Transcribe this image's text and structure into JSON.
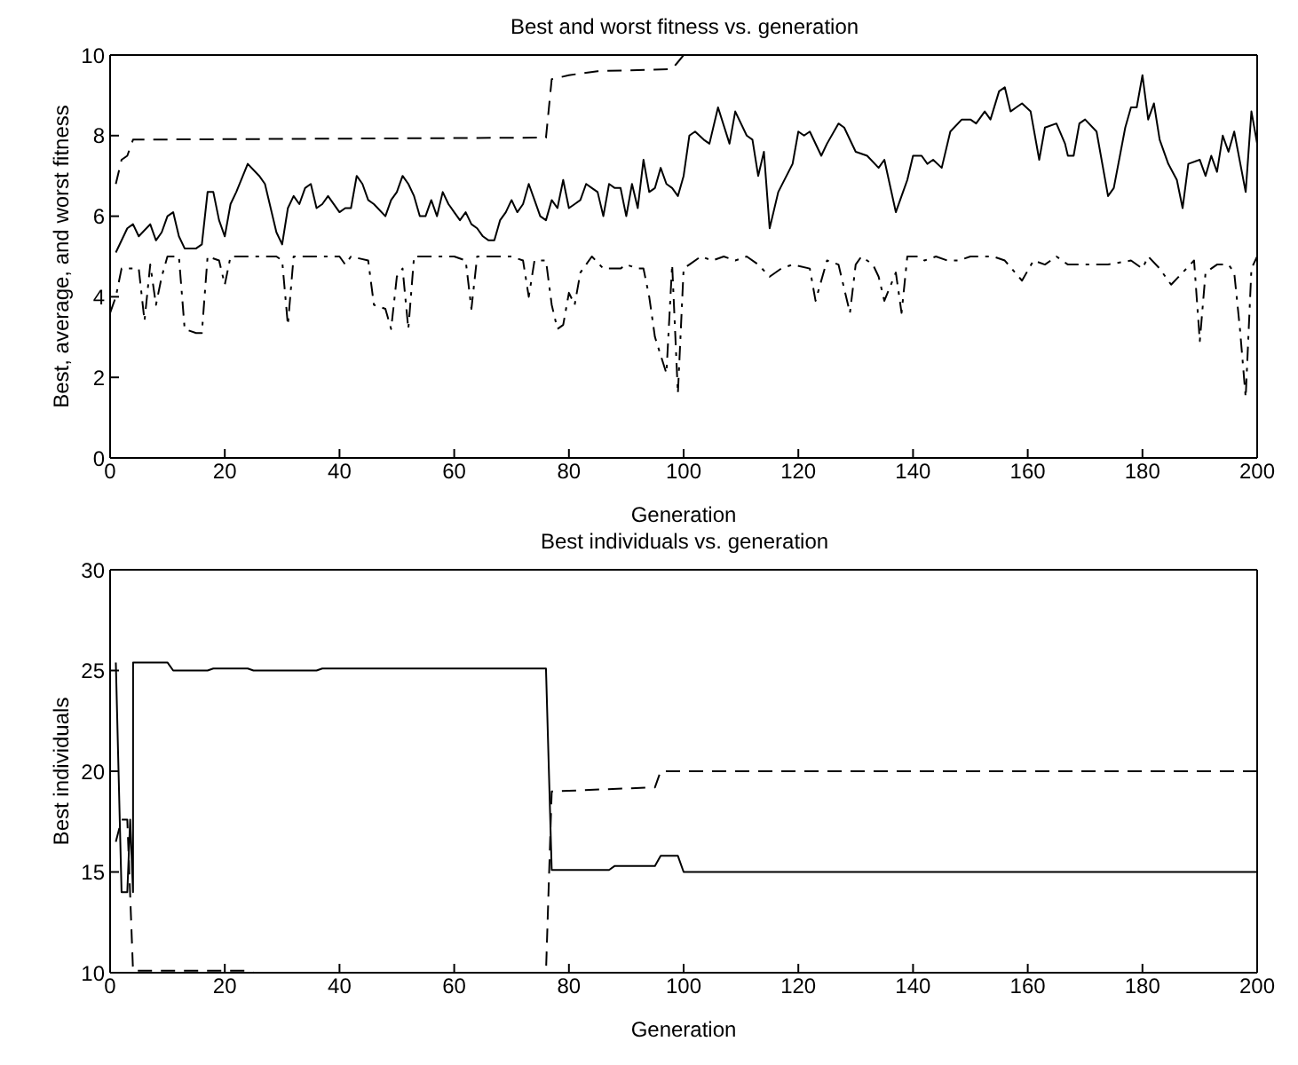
{
  "chart_data": [
    {
      "type": "line",
      "title": "Best and worst fitness vs. generation",
      "xlabel": "Generation",
      "ylabel": "Best, average, and worst fitness",
      "xlim": [
        0,
        200
      ],
      "xticks": [
        0,
        20,
        40,
        60,
        80,
        100,
        120,
        140,
        160,
        180,
        200
      ],
      "ylim": [
        0,
        10
      ],
      "yticks": [
        0,
        2,
        4,
        6,
        8,
        10
      ],
      "series": [
        {
          "color": "#000000",
          "line_style": "dashed",
          "x": [
            1,
            2,
            3,
            4,
            76,
            77,
            80,
            85,
            98,
            100,
            200
          ],
          "values": [
            6.8,
            7.4,
            7.5,
            7.9,
            7.95,
            9.4,
            9.5,
            9.6,
            9.65,
            10,
            10
          ]
        },
        {
          "color": "#000000",
          "line_style": "solid",
          "x": [
            1,
            3,
            4,
            5,
            7,
            8,
            9,
            10,
            11,
            12,
            13,
            15,
            16,
            17,
            18,
            19,
            20,
            21,
            22,
            24,
            26,
            27,
            29,
            30,
            31,
            32,
            33,
            34,
            35,
            36,
            37,
            38,
            40,
            41,
            42,
            43,
            44,
            45,
            46,
            48,
            49,
            50,
            51,
            52,
            53,
            54,
            55,
            56,
            57,
            58,
            59,
            60,
            61,
            62,
            63,
            64,
            65,
            66,
            67,
            68,
            69,
            70,
            71,
            72,
            73,
            74,
            75,
            76,
            77,
            78,
            79,
            80,
            81,
            82,
            83,
            84,
            85,
            86,
            87,
            88,
            89,
            90,
            91,
            92,
            93,
            94,
            95,
            96,
            97,
            98,
            99,
            100,
            101,
            102,
            103.5,
            104.5,
            106,
            108,
            109,
            111,
            112,
            113,
            114,
            115,
            116.5,
            119,
            120,
            121,
            122,
            124,
            125,
            127,
            128,
            130,
            132,
            134,
            135,
            137,
            139,
            140,
            141.5,
            142.5,
            143.5,
            145,
            146.5,
            148.5,
            150,
            151,
            152.5,
            153.5,
            155,
            156,
            157,
            158,
            159,
            160.5,
            162,
            163,
            165,
            166.5,
            167,
            168,
            169,
            170,
            172,
            174,
            175,
            177,
            178,
            179,
            180,
            181,
            182,
            183,
            184.5,
            186,
            187,
            188,
            190,
            191,
            192,
            193,
            194,
            195,
            196,
            198,
            199,
            200
          ],
          "values": [
            5.1,
            5.7,
            5.8,
            5.5,
            5.8,
            5.4,
            5.6,
            6.0,
            6.1,
            5.5,
            5.2,
            5.2,
            5.3,
            6.6,
            6.6,
            5.9,
            5.5,
            6.3,
            6.6,
            7.3,
            7.0,
            6.8,
            5.6,
            5.3,
            6.2,
            6.5,
            6.3,
            6.7,
            6.8,
            6.2,
            6.3,
            6.5,
            6.1,
            6.2,
            6.2,
            7.0,
            6.8,
            6.4,
            6.3,
            6.0,
            6.4,
            6.6,
            7.0,
            6.8,
            6.5,
            6.0,
            6.0,
            6.4,
            6.0,
            6.6,
            6.3,
            6.1,
            5.9,
            6.1,
            5.8,
            5.7,
            5.5,
            5.4,
            5.4,
            5.9,
            6.1,
            6.4,
            6.1,
            6.3,
            6.8,
            6.4,
            6.0,
            5.9,
            6.4,
            6.2,
            6.9,
            6.2,
            6.3,
            6.4,
            6.8,
            6.7,
            6.6,
            6.0,
            6.8,
            6.7,
            6.7,
            6.0,
            6.8,
            6.2,
            7.4,
            6.6,
            6.7,
            7.2,
            6.8,
            6.7,
            6.5,
            7.0,
            8.0,
            8.1,
            7.9,
            7.8,
            8.7,
            7.8,
            8.6,
            8.0,
            7.9,
            7.0,
            7.6,
            5.7,
            6.6,
            7.3,
            8.1,
            8.0,
            8.1,
            7.5,
            7.8,
            8.3,
            8.2,
            7.6,
            7.5,
            7.2,
            7.4,
            6.1,
            6.9,
            7.5,
            7.5,
            7.3,
            7.4,
            7.2,
            8.1,
            8.4,
            8.4,
            8.3,
            8.6,
            8.4,
            9.1,
            9.2,
            8.6,
            8.7,
            8.8,
            8.6,
            7.4,
            8.2,
            8.3,
            7.8,
            7.5,
            7.5,
            8.3,
            8.4,
            8.1,
            6.5,
            6.7,
            8.2,
            8.7,
            8.7,
            9.5,
            8.4,
            8.8,
            7.9,
            7.3,
            6.9,
            6.2,
            7.3,
            7.4,
            7.0,
            7.5,
            7.1,
            8.0,
            7.6,
            8.1,
            6.6,
            8.6,
            7.8
          ]
        },
        {
          "color": "#000000",
          "line_style": "dashdot",
          "x": [
            0,
            1,
            2,
            4,
            5,
            6,
            7,
            8,
            9,
            10,
            12,
            13,
            15,
            16,
            17,
            19,
            20,
            21,
            22,
            29,
            30,
            31,
            32,
            40,
            41,
            42,
            45,
            46,
            48,
            49,
            50,
            51,
            52,
            53,
            60,
            62,
            63,
            64,
            70,
            72,
            73,
            74,
            76,
            77,
            78,
            79,
            80,
            81,
            82,
            84,
            86,
            89,
            90,
            92,
            93,
            94,
            95,
            97,
            98,
            99,
            100,
            101,
            103,
            105,
            107,
            109,
            111,
            113,
            115,
            117,
            119,
            122,
            123,
            125,
            127,
            129,
            130,
            131,
            133,
            134,
            135,
            137,
            138,
            139,
            141,
            142,
            144,
            146,
            148,
            150,
            152,
            154,
            156,
            159,
            161,
            163,
            165,
            167,
            170,
            172,
            174,
            178,
            180,
            181,
            183,
            185,
            187,
            189,
            190,
            191,
            193,
            195,
            196,
            197,
            198,
            199,
            200
          ],
          "values": [
            3.6,
            4.0,
            4.7,
            4.7,
            4.7,
            3.4,
            4.8,
            3.8,
            4.5,
            5.0,
            5.0,
            3.2,
            3.1,
            3.1,
            5.0,
            4.9,
            4.3,
            5.0,
            5.0,
            5.0,
            4.9,
            3.3,
            5.0,
            5.0,
            4.8,
            5.0,
            4.9,
            3.8,
            3.7,
            3.2,
            4.5,
            4.7,
            3.2,
            5.0,
            5.0,
            4.9,
            3.7,
            5.0,
            5.0,
            4.9,
            4.0,
            4.9,
            4.9,
            3.8,
            3.2,
            3.3,
            4.1,
            3.8,
            4.6,
            5.0,
            4.7,
            4.7,
            4.8,
            4.7,
            4.7,
            4.0,
            3.0,
            2.1,
            4.8,
            1.6,
            4.7,
            4.8,
            5.0,
            4.9,
            5.0,
            4.9,
            5.0,
            4.8,
            4.5,
            4.7,
            4.8,
            4.7,
            3.9,
            4.9,
            4.8,
            3.6,
            4.8,
            5.0,
            4.8,
            4.5,
            3.9,
            4.6,
            3.6,
            5.0,
            5.0,
            4.9,
            5.0,
            4.9,
            4.9,
            5.0,
            5.0,
            5.0,
            4.9,
            4.4,
            4.9,
            4.8,
            5.0,
            4.8,
            4.8,
            4.8,
            4.8,
            4.9,
            4.7,
            5.0,
            4.7,
            4.3,
            4.6,
            4.9,
            2.9,
            4.6,
            4.8,
            4.8,
            4.6,
            3.2,
            1.5,
            4.7,
            5.0
          ]
        }
      ]
    },
    {
      "type": "line",
      "title": "Best individuals vs. generation",
      "xlabel": "Generation",
      "ylabel": "Best individuals",
      "xlim": [
        0,
        200
      ],
      "xticks": [
        0,
        20,
        40,
        60,
        80,
        100,
        120,
        140,
        160,
        180,
        200
      ],
      "ylim": [
        10,
        30
      ],
      "yticks": [
        10,
        15,
        20,
        25,
        30
      ],
      "series": [
        {
          "color": "#000000",
          "line_style": "solid",
          "x": [
            1,
            2,
            3,
            3.5,
            4,
            4.01,
            10,
            11,
            17,
            18,
            24,
            25,
            36,
            37,
            76,
            77,
            87,
            88,
            95,
            96,
            99,
            100,
            200
          ],
          "values": [
            25.4,
            14,
            14,
            17.6,
            14,
            25.4,
            25.4,
            25.0,
            25.0,
            25.1,
            25.1,
            25.0,
            25.0,
            25.1,
            25.1,
            15.1,
            15.1,
            15.3,
            15.3,
            15.8,
            15.8,
            15.0,
            15.0
          ]
        },
        {
          "color": "#000000",
          "line_style": "dashed",
          "x": [
            1,
            2,
            3,
            4,
            24,
            25,
            76,
            77,
            95,
            96,
            200
          ],
          "values": [
            16.5,
            17.6,
            17.6,
            10.1,
            10.1,
            10.0,
            10.0,
            19.0,
            19.2,
            20.0,
            20.0
          ]
        }
      ]
    }
  ]
}
